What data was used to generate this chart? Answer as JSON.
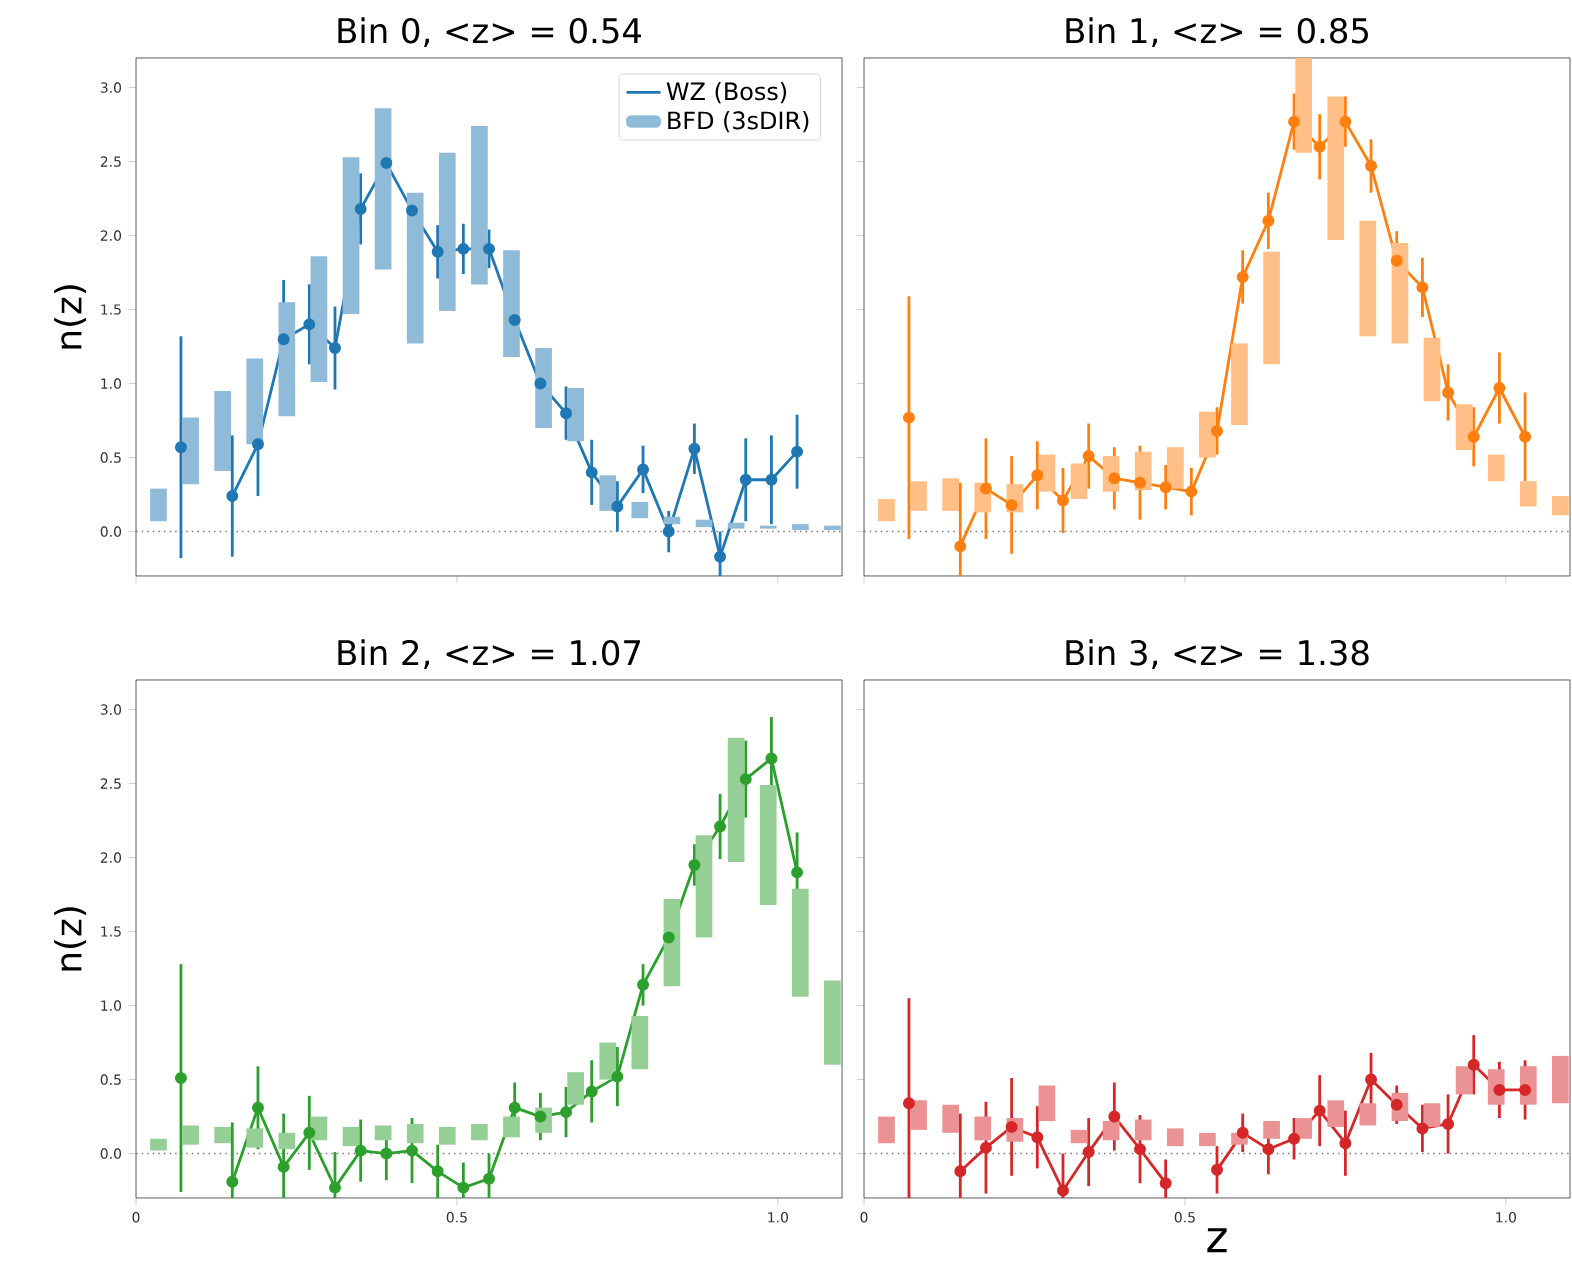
{
  "chart_data": [
    {
      "type": "line",
      "title": "Bin 0, <z> = 0.54",
      "ylabel": "n(z)",
      "xlim": [
        0,
        1.1
      ],
      "xticks": [
        {
          "value": 0,
          "label": null
        },
        {
          "value": 0.5,
          "label": null
        },
        {
          "value": 1.0,
          "label": null
        }
      ],
      "ylim": [
        -0.3,
        3.2
      ],
      "yticks": [
        {
          "value": 0,
          "label": "0.0"
        },
        {
          "value": 0.5,
          "label": "0.5"
        },
        {
          "value": 1,
          "label": "1.0"
        },
        {
          "value": 1.5,
          "label": "1.5"
        },
        {
          "value": 2,
          "label": "2.0"
        },
        {
          "value": 2.5,
          "label": "2.5"
        },
        {
          "value": 3,
          "label": "3.0"
        }
      ],
      "tick_labels": "y",
      "legend": "top right",
      "marker": "circle",
      "ref_lines": [
        {
          "axis": "y",
          "value": 0,
          "color": "#808080",
          "line_style": "dotted"
        }
      ],
      "series": [
        {
          "name": "WZ (Boss)",
          "color": "#1f77b4",
          "x": [
            0.07,
            0.11,
            0.15,
            0.19,
            0.23,
            0.27,
            0.31,
            0.35,
            0.39,
            0.43,
            0.47,
            0.51,
            0.55,
            0.59,
            0.63,
            0.67,
            0.71,
            0.75,
            0.79,
            0.83,
            0.87,
            0.91,
            0.95,
            0.99,
            1.03
          ],
          "values": [
            0.57,
            null,
            0.24,
            0.59,
            1.3,
            1.4,
            1.24,
            2.18,
            2.49,
            2.17,
            1.89,
            1.91,
            1.91,
            1.43,
            1.0,
            0.8,
            0.4,
            0.17,
            0.42,
            0.0,
            0.56,
            -0.17,
            0.35,
            0.35,
            0.54
          ],
          "errors": [
            0.75,
            null,
            0.41,
            0.35,
            0.4,
            0.27,
            0.28,
            0.24,
            0.27,
            0.1,
            0.18,
            0.17,
            0.13,
            0.16,
            0.13,
            0.18,
            0.22,
            0.17,
            0.16,
            0.14,
            0.17,
            0.17,
            0.28,
            0.3,
            0.25
          ]
        },
        {
          "name": "BFD (3sDIR)",
          "type": "bar",
          "color": "#8fbbd9",
          "x": [
            0.035,
            0.085,
            0.135,
            0.185,
            0.235,
            0.285,
            0.335,
            0.385,
            0.435,
            0.485,
            0.535,
            0.585,
            0.635,
            0.685,
            0.735,
            0.785,
            0.835,
            0.885,
            0.935,
            0.985,
            1.035,
            1.085
          ],
          "base": [
            0.07,
            0.32,
            0.41,
            0.59,
            0.78,
            1.01,
            1.47,
            1.77,
            1.27,
            1.49,
            1.67,
            1.18,
            0.7,
            0.61,
            0.14,
            0.09,
            0.05,
            0.03,
            0.02,
            0.02,
            0.01,
            0.01
          ],
          "values": [
            0.22,
            0.45,
            0.54,
            0.58,
            0.77,
            0.85,
            1.06,
            1.09,
            1.02,
            1.07,
            1.07,
            0.72,
            0.54,
            0.36,
            0.24,
            0.11,
            0.05,
            0.05,
            0.04,
            0.02,
            0.04,
            0.03
          ]
        }
      ]
    },
    {
      "type": "line",
      "title": "Bin 1, <z> = 0.85",
      "xlim": [
        0,
        1.1
      ],
      "xticks": [
        {
          "value": 0,
          "label": null
        },
        {
          "value": 0.5,
          "label": null
        },
        {
          "value": 1.0,
          "label": null
        }
      ],
      "ylim": [
        -0.3,
        3.2
      ],
      "yticks": [
        {
          "value": 0,
          "label": null
        },
        {
          "value": 0.5,
          "label": null
        },
        {
          "value": 1,
          "label": null
        },
        {
          "value": 1.5,
          "label": null
        },
        {
          "value": 2,
          "label": null
        },
        {
          "value": 2.5,
          "label": null
        },
        {
          "value": 3,
          "label": null
        }
      ],
      "tick_labels": false,
      "marker": "circle",
      "ref_lines": [
        {
          "axis": "y",
          "value": 0,
          "color": "#808080",
          "line_style": "dotted"
        }
      ],
      "series": [
        {
          "color": "#ff7f0e",
          "x": [
            0.07,
            0.11,
            0.15,
            0.19,
            0.23,
            0.27,
            0.31,
            0.35,
            0.39,
            0.43,
            0.47,
            0.51,
            0.55,
            0.59,
            0.63,
            0.67,
            0.71,
            0.75,
            0.79,
            0.83,
            0.87,
            0.91,
            0.95,
            0.99,
            1.03
          ],
          "values": [
            0.77,
            null,
            -0.1,
            0.29,
            0.18,
            0.38,
            0.21,
            0.51,
            0.36,
            0.33,
            0.3,
            0.27,
            0.68,
            1.72,
            2.1,
            2.77,
            2.6,
            2.77,
            2.47,
            1.83,
            1.65,
            0.94,
            0.64,
            0.97,
            0.64
          ],
          "errors": [
            0.82,
            null,
            0.43,
            0.34,
            0.33,
            0.23,
            0.22,
            0.22,
            0.21,
            0.25,
            0.15,
            0.16,
            0.16,
            0.18,
            0.19,
            0.19,
            0.22,
            0.17,
            0.18,
            0.2,
            0.2,
            0.19,
            0.2,
            0.24,
            0.3
          ]
        },
        {
          "type": "bar",
          "color": "#ffbf86",
          "x": [
            0.035,
            0.085,
            0.135,
            0.185,
            0.235,
            0.285,
            0.335,
            0.385,
            0.435,
            0.485,
            0.535,
            0.585,
            0.635,
            0.685,
            0.735,
            0.785,
            0.835,
            0.885,
            0.935,
            0.985,
            1.035,
            1.085
          ],
          "base": [
            0.07,
            0.14,
            0.14,
            0.13,
            0.13,
            0.27,
            0.22,
            0.27,
            0.28,
            0.29,
            0.5,
            0.72,
            1.13,
            2.56,
            1.97,
            1.32,
            1.27,
            0.88,
            0.55,
            0.34,
            0.17,
            0.11
          ],
          "values": [
            0.15,
            0.2,
            0.22,
            0.2,
            0.19,
            0.25,
            0.24,
            0.24,
            0.26,
            0.28,
            0.31,
            0.55,
            0.76,
            0.64,
            0.97,
            0.78,
            0.68,
            0.43,
            0.31,
            0.18,
            0.17,
            0.13
          ]
        }
      ]
    },
    {
      "type": "line",
      "title": "Bin 2, <z> = 1.07",
      "ylabel": "n(z)",
      "xlim": [
        0,
        1.1
      ],
      "xticks": [
        0,
        0.5,
        {
          "value": 1.0,
          "label": "1.0"
        }
      ],
      "ylim": [
        -0.3,
        3.2
      ],
      "yticks": [
        {
          "value": 0,
          "label": "0.0"
        },
        {
          "value": 0.5,
          "label": "0.5"
        },
        {
          "value": 1,
          "label": "1.0"
        },
        {
          "value": 1.5,
          "label": "1.5"
        },
        {
          "value": 2,
          "label": "2.0"
        },
        {
          "value": 2.5,
          "label": "2.5"
        },
        {
          "value": 3,
          "label": "3.0"
        }
      ],
      "marker": "circle",
      "ref_lines": [
        {
          "axis": "y",
          "value": 0,
          "color": "#808080",
          "line_style": "dotted"
        }
      ],
      "series": [
        {
          "color": "#2ca02c",
          "x": [
            0.07,
            0.11,
            0.15,
            0.19,
            0.23,
            0.27,
            0.31,
            0.35,
            0.39,
            0.43,
            0.47,
            0.51,
            0.55,
            0.59,
            0.63,
            0.67,
            0.71,
            0.75,
            0.79,
            0.83,
            0.87,
            0.91,
            0.95,
            0.99,
            1.03
          ],
          "values": [
            0.51,
            null,
            -0.19,
            0.31,
            -0.09,
            0.14,
            -0.23,
            0.02,
            0.0,
            0.02,
            -0.12,
            -0.23,
            -0.17,
            0.31,
            0.25,
            0.28,
            0.42,
            0.52,
            1.14,
            1.46,
            1.95,
            2.21,
            2.53,
            2.67,
            1.9
          ],
          "errors": [
            0.77,
            null,
            0.4,
            0.28,
            0.36,
            0.25,
            0.24,
            0.21,
            0.18,
            0.22,
            0.18,
            0.17,
            0.17,
            0.17,
            0.16,
            0.17,
            0.21,
            0.2,
            0.14,
            0.15,
            0.14,
            0.22,
            0.26,
            0.28,
            0.27
          ]
        },
        {
          "type": "bar",
          "color": "#95cf95",
          "x": [
            0.035,
            0.085,
            0.135,
            0.185,
            0.235,
            0.285,
            0.335,
            0.385,
            0.435,
            0.485,
            0.535,
            0.585,
            0.635,
            0.685,
            0.735,
            0.785,
            0.835,
            0.885,
            0.935,
            0.985,
            1.035,
            1.085
          ],
          "base": [
            0.02,
            0.06,
            0.07,
            0.04,
            0.03,
            0.09,
            0.05,
            0.09,
            0.07,
            0.06,
            0.09,
            0.11,
            0.14,
            0.33,
            0.5,
            0.57,
            1.13,
            1.46,
            1.97,
            1.68,
            1.06,
            0.6
          ],
          "values": [
            0.08,
            0.13,
            0.11,
            0.13,
            0.11,
            0.16,
            0.13,
            0.1,
            0.13,
            0.12,
            0.11,
            0.14,
            0.17,
            0.22,
            0.25,
            0.36,
            0.59,
            0.69,
            0.84,
            0.81,
            0.73,
            0.57
          ]
        }
      ]
    },
    {
      "type": "line",
      "title": "Bin 3, <z> = 1.38",
      "xlabel": "z",
      "xlim": [
        0,
        1.1
      ],
      "xticks": [
        0,
        0.5,
        {
          "value": 1.0,
          "label": "1.0"
        }
      ],
      "ylim": [
        -0.3,
        3.2
      ],
      "yticks": [
        {
          "value": 0,
          "label": null
        },
        {
          "value": 0.5,
          "label": null
        },
        {
          "value": 1,
          "label": null
        },
        {
          "value": 1.5,
          "label": null
        },
        {
          "value": 2,
          "label": null
        },
        {
          "value": 2.5,
          "label": null
        },
        {
          "value": 3,
          "label": null
        }
      ],
      "tick_labels": "x",
      "marker": "circle",
      "ref_lines": [
        {
          "axis": "y",
          "value": 0,
          "color": "#808080",
          "line_style": "dotted"
        }
      ],
      "series": [
        {
          "color": "#d62728",
          "x": [
            0.07,
            0.11,
            0.15,
            0.19,
            0.23,
            0.27,
            0.31,
            0.35,
            0.39,
            0.43,
            0.47,
            0.51,
            0.55,
            0.59,
            0.63,
            0.67,
            0.71,
            0.75,
            0.79,
            0.83,
            0.87,
            0.91,
            0.95,
            0.99,
            1.03
          ],
          "values": [
            0.34,
            null,
            -0.12,
            0.04,
            0.18,
            0.11,
            -0.25,
            0.01,
            0.25,
            0.03,
            -0.2,
            null,
            -0.11,
            0.14,
            0.03,
            0.1,
            0.29,
            0.07,
            0.5,
            0.33,
            0.17,
            0.2,
            0.6,
            0.43,
            0.43
          ],
          "errors": [
            0.71,
            null,
            0.39,
            0.31,
            0.33,
            0.21,
            0.25,
            0.23,
            0.23,
            0.23,
            0.16,
            null,
            0.16,
            0.13,
            0.17,
            0.14,
            0.24,
            0.22,
            0.18,
            0.13,
            0.16,
            0.2,
            0.2,
            0.19,
            0.2
          ]
        },
        {
          "type": "bar",
          "color": "#eb9394",
          "x": [
            0.035,
            0.085,
            0.135,
            0.185,
            0.235,
            0.285,
            0.335,
            0.385,
            0.435,
            0.485,
            0.535,
            0.585,
            0.635,
            0.685,
            0.735,
            0.785,
            0.835,
            0.885,
            0.935,
            0.985,
            1.035,
            1.085
          ],
          "base": [
            0.07,
            0.16,
            0.14,
            0.09,
            0.08,
            0.22,
            0.07,
            0.09,
            0.09,
            0.05,
            0.05,
            0.06,
            0.1,
            0.1,
            0.18,
            0.19,
            0.22,
            0.18,
            0.4,
            0.33,
            0.33,
            0.34
          ],
          "values": [
            0.18,
            0.2,
            0.19,
            0.16,
            0.16,
            0.24,
            0.09,
            0.13,
            0.14,
            0.12,
            0.09,
            0.08,
            0.12,
            0.14,
            0.18,
            0.15,
            0.19,
            0.16,
            0.19,
            0.24,
            0.26,
            0.32
          ]
        }
      ]
    }
  ]
}
